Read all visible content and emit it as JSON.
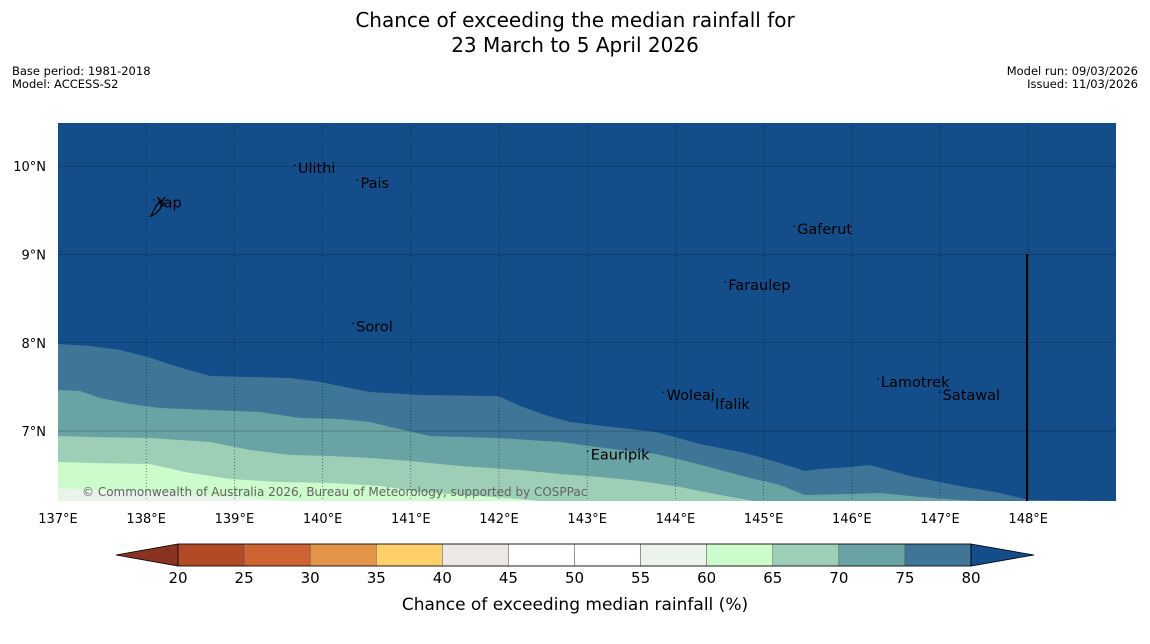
{
  "title": {
    "line1": "Chance of exceeding the median rainfall for",
    "line2": "23 March to 5 April 2026"
  },
  "info_left": {
    "base_period": "Base period: 1981-2018",
    "model": "Model: ACCESS-S2"
  },
  "info_right": {
    "model_run": "Model run: 09/03/2026",
    "issued": "Issued: 11/03/2026"
  },
  "map": {
    "lon_labels": [
      "137°E",
      "138°E",
      "139°E",
      "140°E",
      "141°E",
      "142°E",
      "143°E",
      "144°E",
      "145°E",
      "146°E",
      "147°E",
      "148°E"
    ],
    "lat_labels": [
      "10°N",
      "9°N",
      "8°N",
      "7°N"
    ],
    "copyright": "© Commonwealth of Australia 2026, Bureau of Meteorology, supported by COSPPac",
    "places": [
      {
        "name": "Ulithi",
        "lon": 139.72,
        "lat": 9.92
      },
      {
        "name": "Pais",
        "lon": 140.43,
        "lat": 9.75
      },
      {
        "name": "Yap",
        "lon": 138.12,
        "lat": 9.53
      },
      {
        "name": "Gaferut",
        "lon": 145.38,
        "lat": 9.23
      },
      {
        "name": "Faraulep",
        "lon": 144.6,
        "lat": 8.6
      },
      {
        "name": "Sorol",
        "lon": 140.38,
        "lat": 8.13
      },
      {
        "name": "Lamotrek",
        "lon": 146.33,
        "lat": 7.5
      },
      {
        "name": "Woleai",
        "lon": 143.9,
        "lat": 7.35
      },
      {
        "name": "Ifalik",
        "lon": 144.45,
        "lat": 7.25
      },
      {
        "name": "Satawal",
        "lon": 147.03,
        "lat": 7.35
      },
      {
        "name": "Eauripik",
        "lon": 143.04,
        "lat": 6.68
      }
    ]
  },
  "colorbar": {
    "label": "Chance of exceeding median rainfall (%)",
    "ticks": [
      "20",
      "25",
      "30",
      "35",
      "40",
      "45",
      "50",
      "55",
      "60",
      "65",
      "70",
      "75",
      "80"
    ],
    "colors": [
      "#8b3323",
      "#b24a26",
      "#cd6432",
      "#e29448",
      "#fdd06a",
      "#ece9e4",
      "#ffffff",
      "#ffffff",
      "#ebf4eb",
      "#ccfccc",
      "#9ccfb6",
      "#6aa3a4",
      "#3f7697",
      "#134d8a"
    ]
  }
}
